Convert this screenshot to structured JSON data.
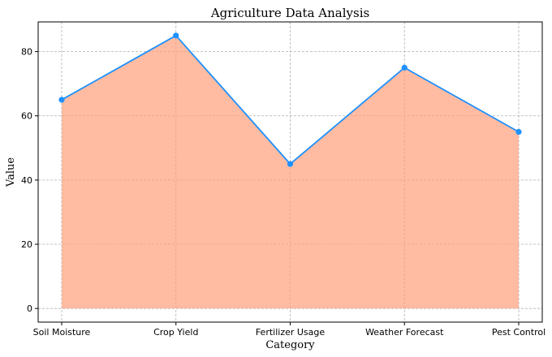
{
  "chart_data": {
    "type": "area",
    "title": "Agriculture Data Analysis",
    "xlabel": "Category",
    "ylabel": "Value",
    "categories": [
      "Soil Moisture",
      "Crop Yield",
      "Fertilizer Usage",
      "Weather Forecast",
      "Pest Control"
    ],
    "values": [
      65,
      85,
      45,
      75,
      55
    ],
    "yticks": [
      0,
      20,
      40,
      60,
      80
    ],
    "ylim": [
      -4.25,
      89.25
    ],
    "grid": true,
    "legend": "none",
    "colors": {
      "line": "#1e90ff",
      "marker": "#1e90ff",
      "fill": "#ffa07a",
      "grid": "#b0b0b0",
      "axis": "#000000"
    }
  }
}
